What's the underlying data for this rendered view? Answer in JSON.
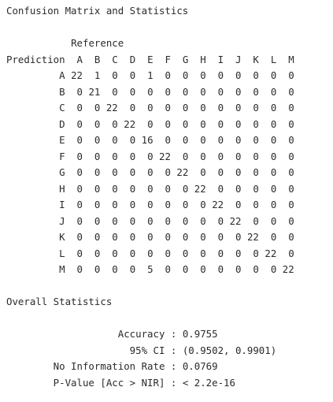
{
  "title": "Confusion Matrix and Statistics",
  "confusion_matrix": {
    "reference_label": "Reference",
    "prediction_label": "Prediction",
    "classes": [
      "A",
      "B",
      "C",
      "D",
      "E",
      "F",
      "G",
      "H",
      "I",
      "J",
      "K",
      "L",
      "M"
    ],
    "rows": [
      [
        22,
        1,
        0,
        0,
        1,
        0,
        0,
        0,
        0,
        0,
        0,
        0,
        0
      ],
      [
        0,
        21,
        0,
        0,
        0,
        0,
        0,
        0,
        0,
        0,
        0,
        0,
        0
      ],
      [
        0,
        0,
        22,
        0,
        0,
        0,
        0,
        0,
        0,
        0,
        0,
        0,
        0
      ],
      [
        0,
        0,
        0,
        22,
        0,
        0,
        0,
        0,
        0,
        0,
        0,
        0,
        0
      ],
      [
        0,
        0,
        0,
        0,
        16,
        0,
        0,
        0,
        0,
        0,
        0,
        0,
        0
      ],
      [
        0,
        0,
        0,
        0,
        0,
        22,
        0,
        0,
        0,
        0,
        0,
        0,
        0
      ],
      [
        0,
        0,
        0,
        0,
        0,
        0,
        22,
        0,
        0,
        0,
        0,
        0,
        0
      ],
      [
        0,
        0,
        0,
        0,
        0,
        0,
        0,
        22,
        0,
        0,
        0,
        0,
        0
      ],
      [
        0,
        0,
        0,
        0,
        0,
        0,
        0,
        0,
        22,
        0,
        0,
        0,
        0
      ],
      [
        0,
        0,
        0,
        0,
        0,
        0,
        0,
        0,
        0,
        22,
        0,
        0,
        0
      ],
      [
        0,
        0,
        0,
        0,
        0,
        0,
        0,
        0,
        0,
        0,
        22,
        0,
        0
      ],
      [
        0,
        0,
        0,
        0,
        0,
        0,
        0,
        0,
        0,
        0,
        0,
        22,
        0
      ],
      [
        0,
        0,
        0,
        0,
        5,
        0,
        0,
        0,
        0,
        0,
        0,
        0,
        22
      ]
    ]
  },
  "overall_statistics": {
    "heading": "Overall Statistics",
    "items": [
      {
        "label": "Accuracy",
        "value": "0.9755"
      },
      {
        "label": "95% CI",
        "value": "(0.9502, 0.9901)"
      },
      {
        "label": "No Information Rate",
        "value": "0.0769"
      },
      {
        "label": "P-Value [Acc > NIR]",
        "value": "< 2.2e-16"
      }
    ]
  },
  "colors": {
    "text": "#2b2b2b",
    "background": "#ffffff"
  }
}
